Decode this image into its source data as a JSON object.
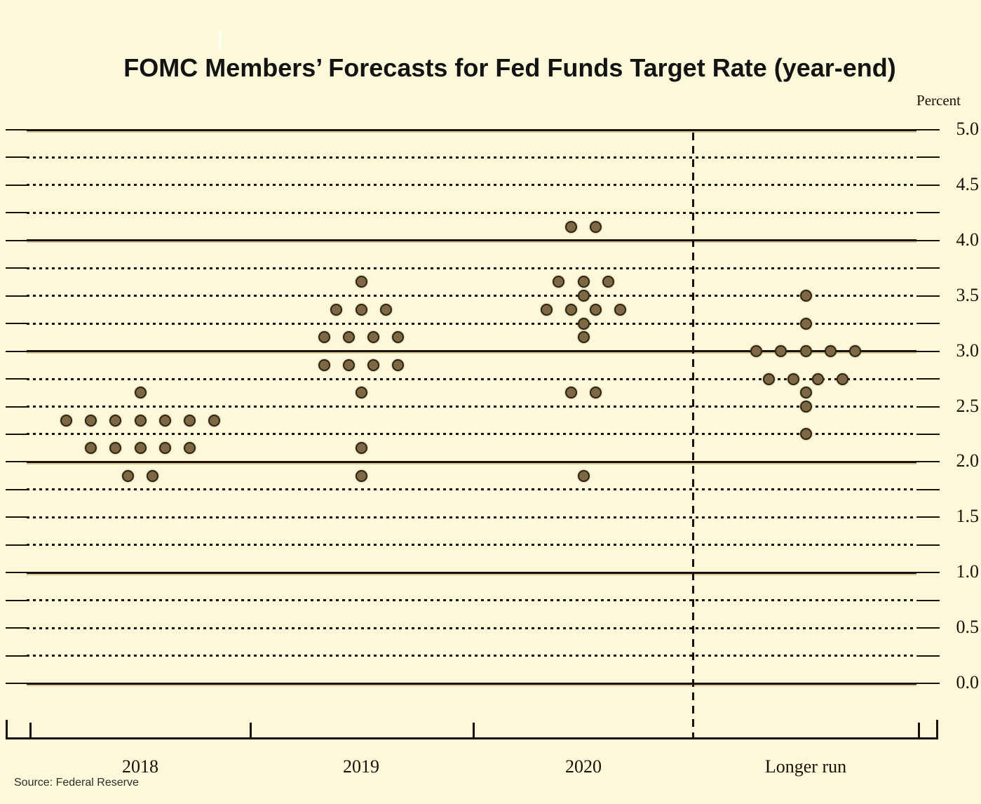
{
  "page": {
    "source_note": "Source: Federal Reserve"
  },
  "chart_data": {
    "type": "scatter",
    "title": "FOMC Members’ Forecasts for Fed Funds Target Rate (year-end)",
    "ylabel": "Percent",
    "xlabel": "",
    "ylim": [
      0.0,
      5.0
    ],
    "y_gridline_step": 0.25,
    "solid_gridline_values": [
      0.0,
      1.0,
      2.0,
      3.0,
      4.0,
      5.0
    ],
    "y_tick_labels": [
      "5.0",
      "4.5",
      "4.0",
      "3.5",
      "3.0",
      "2.5",
      "2.0",
      "1.5",
      "1.0",
      "0.5",
      "0.0"
    ],
    "categories": [
      "2018",
      "2019",
      "2020",
      "Longer run"
    ],
    "series": [
      {
        "name": "2018",
        "dots": [
          {
            "rate": 2.625,
            "count": 1
          },
          {
            "rate": 2.375,
            "count": 7
          },
          {
            "rate": 2.125,
            "count": 5
          },
          {
            "rate": 1.875,
            "count": 2
          }
        ]
      },
      {
        "name": "2019",
        "dots": [
          {
            "rate": 3.625,
            "count": 1
          },
          {
            "rate": 3.375,
            "count": 3
          },
          {
            "rate": 3.125,
            "count": 4
          },
          {
            "rate": 2.875,
            "count": 4
          },
          {
            "rate": 2.625,
            "count": 1
          },
          {
            "rate": 2.125,
            "count": 1
          },
          {
            "rate": 1.875,
            "count": 1
          }
        ]
      },
      {
        "name": "2020",
        "dots": [
          {
            "rate": 4.125,
            "count": 2
          },
          {
            "rate": 3.625,
            "count": 3
          },
          {
            "rate": 3.5,
            "count": 1
          },
          {
            "rate": 3.375,
            "count": 4
          },
          {
            "rate": 3.25,
            "count": 1
          },
          {
            "rate": 3.125,
            "count": 1
          },
          {
            "rate": 2.625,
            "count": 2
          },
          {
            "rate": 1.875,
            "count": 1
          }
        ]
      },
      {
        "name": "Longer run",
        "dots": [
          {
            "rate": 3.5,
            "count": 1
          },
          {
            "rate": 3.25,
            "count": 1
          },
          {
            "rate": 3.0,
            "count": 5
          },
          {
            "rate": 2.75,
            "count": 4
          },
          {
            "rate": 2.625,
            "count": 1
          },
          {
            "rate": 2.5,
            "count": 1
          },
          {
            "rate": 2.25,
            "count": 1
          }
        ]
      }
    ],
    "divider": {
      "style": "dashed-vertical",
      "between": [
        "2020",
        "Longer run"
      ]
    },
    "grid": true,
    "legend_position": "none",
    "colors": {
      "background": "#fcf9db",
      "line": "#1a1208",
      "line_shadow": "rgba(150,118,30,0.38)",
      "dot_fill": "#7d6843",
      "dot_border": "#2e2414",
      "text": "#171006",
      "title_text": "#131313",
      "source_text": "#2d2d2d"
    }
  }
}
